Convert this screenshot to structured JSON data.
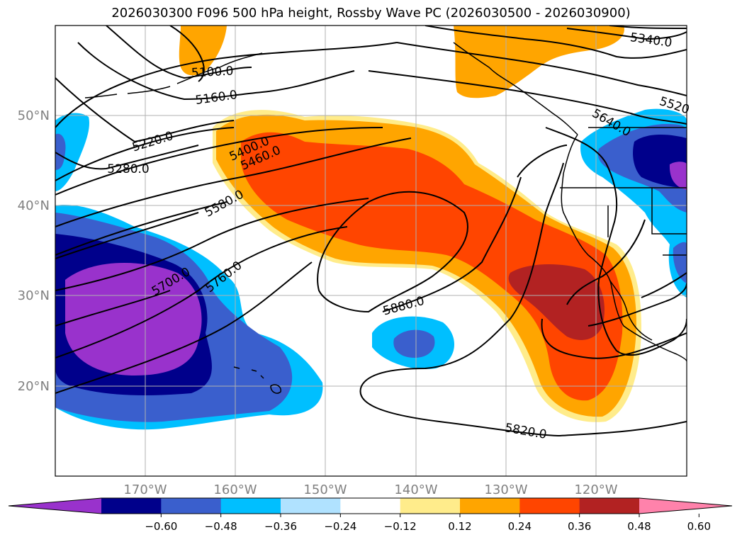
{
  "title": "2026030300 F096 500 hPa height, Rossby Wave PC (2026030500 - 2026030900)",
  "axes": {
    "lat_labels": [
      "50°N",
      "40°N",
      "30°N",
      "20°N"
    ],
    "lon_labels": [
      "170°W",
      "160°W",
      "150°W",
      "140°W",
      "130°W",
      "120°W"
    ]
  },
  "contour_labels": [
    "5100.0",
    "5160.0",
    "5220.0",
    "5280.0",
    "5400.0",
    "5460.0",
    "5580.0",
    "5700.0",
    "5760.0",
    "5880.0",
    "5820.0",
    "5340.0",
    "5520",
    "5640.0"
  ],
  "colorbar": {
    "ticks": [
      "−0.60",
      "−0.48",
      "−0.36",
      "−0.24",
      "−0.12",
      "0.12",
      "0.24",
      "0.36",
      "0.48",
      "0.60"
    ],
    "colors": [
      "#9932CC",
      "#00008B",
      "#3A5FCD",
      "#00BFFF",
      "#B0E2FF",
      "#FFFFFF",
      "#FFEC8B",
      "#FFA500",
      "#FF4500",
      "#B22222",
      "#FF82AB"
    ]
  }
}
